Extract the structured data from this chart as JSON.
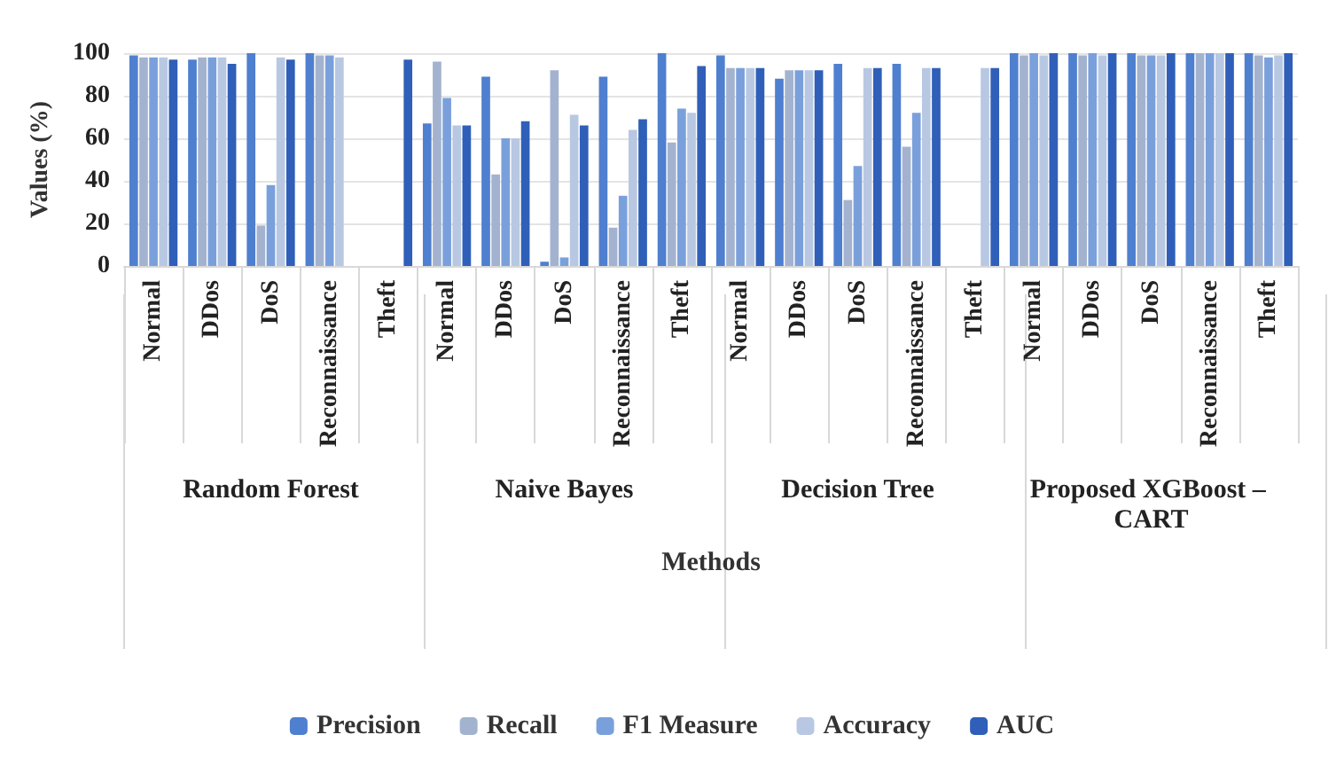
{
  "chart_data": {
    "type": "bar",
    "xlabel": "Methods",
    "ylabel": "Values (%)",
    "categories": [
      "Normal",
      "DDos",
      "DoS",
      "Reconnaissance",
      "Theft",
      "Normal",
      "DDos",
      "DoS",
      "Reconnaissance",
      "Theft",
      "Normal",
      "DDos",
      "DoS",
      "Reconnaissance",
      "Theft",
      "Normal",
      "DDos",
      "DoS",
      "Reconnaissance",
      "Theft"
    ],
    "annotations": [
      "Random Forest",
      "Naive Bayes",
      "Decision Tree",
      "Proposed XGBoost – CART"
    ],
    "series": [
      {
        "name": "Precision",
        "color": "#4f7fcf",
        "values": [
          99,
          97,
          100,
          100,
          0,
          67,
          89,
          2,
          89,
          100,
          99,
          88,
          95,
          95,
          0,
          100,
          100,
          100,
          100,
          100
        ]
      },
      {
        "name": "Recall",
        "color": "#a3b3cf",
        "values": [
          98,
          98,
          19,
          99,
          0,
          96,
          43,
          92,
          18,
          58,
          93,
          92,
          31,
          56,
          0,
          99,
          99,
          99,
          100,
          99
        ]
      },
      {
        "name": "F1 Measure",
        "color": "#7aa0dc",
        "values": [
          98,
          98,
          38,
          99,
          0,
          79,
          60,
          4,
          33,
          74,
          93,
          92,
          47,
          72,
          0,
          100,
          100,
          99,
          100,
          98
        ]
      },
      {
        "name": "Accuracy",
        "color": "#b8c8e2",
        "values": [
          98,
          98,
          98,
          98,
          0,
          66,
          60,
          71,
          64,
          72,
          93,
          92,
          93,
          93,
          93,
          99,
          99,
          99,
          100,
          99
        ]
      },
      {
        "name": "AUC",
        "color": "#2f5fb8",
        "values": [
          97,
          95,
          97,
          0,
          97,
          66,
          68,
          66,
          69,
          94,
          93,
          92,
          93,
          93,
          93,
          100,
          100,
          100,
          100,
          100
        ]
      }
    ],
    "ylim": [
      0,
      100
    ],
    "yticks": [
      0,
      20,
      40,
      60,
      80,
      100
    ],
    "grid": "y",
    "legend": "bottom"
  }
}
